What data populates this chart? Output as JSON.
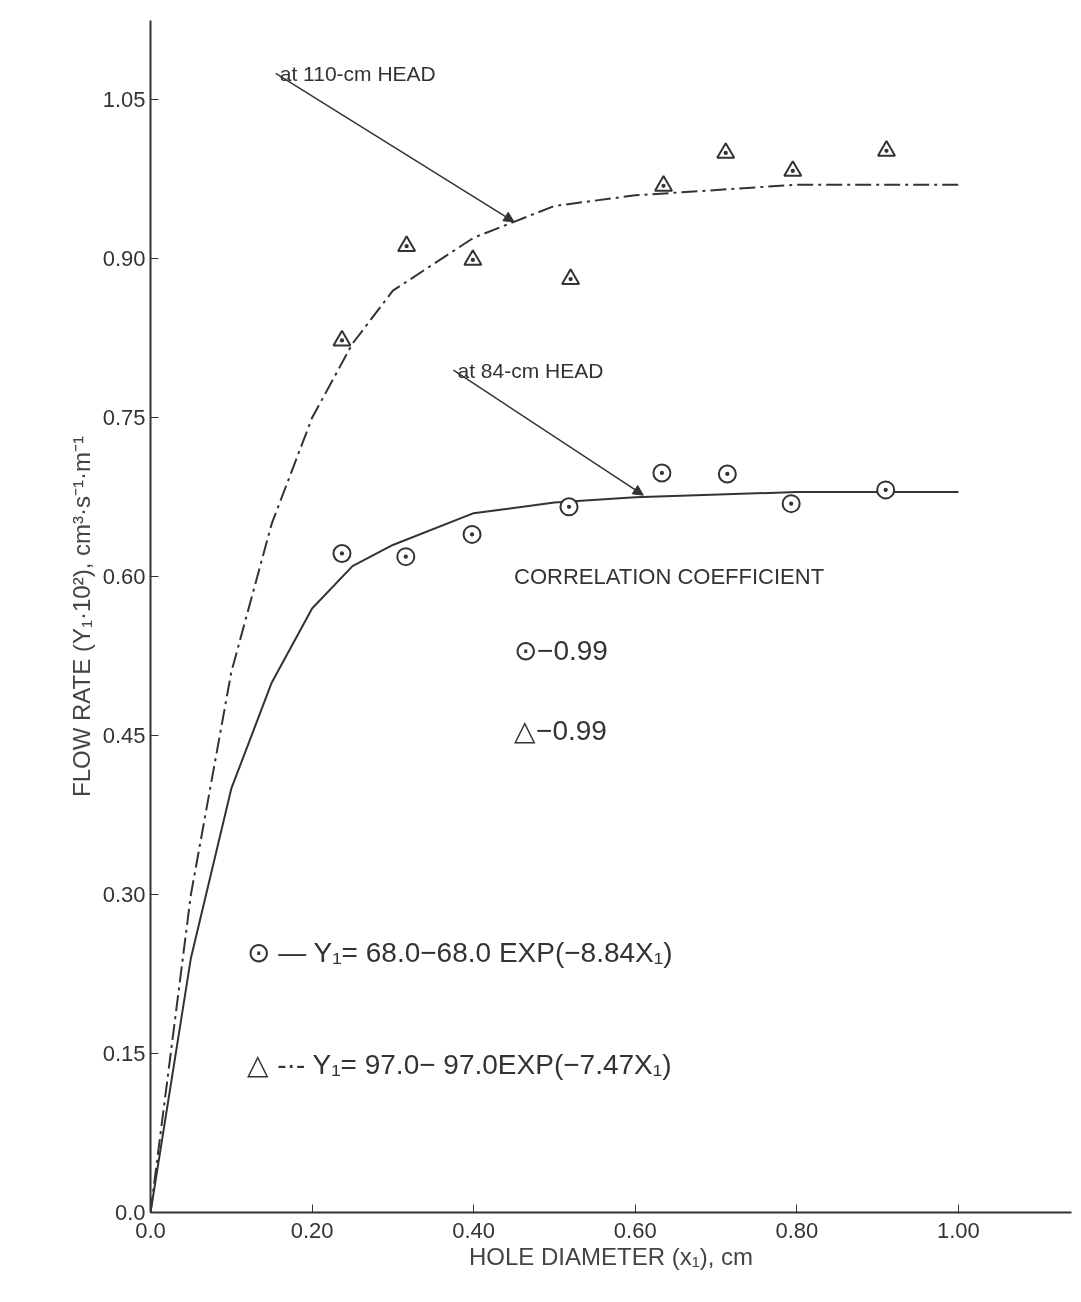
{
  "chart_data": {
    "type": "scatter",
    "xlabel": "HOLE DIAMETER (x₁), cm",
    "ylabel": "FLOW RATE (Y₁·10²), cm³·s⁻¹·m⁻¹",
    "xlim": [
      0,
      1.14
    ],
    "ylim": [
      0,
      1.125
    ],
    "xticks": [
      {
        "value": 0,
        "label": "0.0"
      },
      {
        "value": 0.2,
        "label": "0.20"
      },
      {
        "value": 0.4,
        "label": "0.40"
      },
      {
        "value": 0.6,
        "label": "0.60"
      },
      {
        "value": 0.8,
        "label": "0.80"
      },
      {
        "value": 1.0,
        "label": "1.00"
      }
    ],
    "yticks": [
      {
        "value": 0,
        "label": "0.0"
      },
      0.15,
      {
        "value": 0.3,
        "label": "0.30"
      },
      0.45,
      {
        "value": 0.6,
        "label": "0.60"
      },
      0.75,
      {
        "value": 0.9,
        "label": "0.90"
      },
      1.05
    ],
    "grid": false,
    "series": [
      {
        "marker": "circle",
        "color": "#333333",
        "x": [
          0.237,
          0.316,
          0.398,
          0.518,
          0.633,
          0.714,
          0.793,
          0.91
        ],
        "values": [
          0.622,
          0.619,
          0.64,
          0.666,
          0.698,
          0.697,
          0.669,
          0.682
        ]
      },
      {
        "marker": "triangle",
        "color": "#333333",
        "x": [
          0.237,
          0.317,
          0.399,
          0.52,
          0.635,
          0.712,
          0.795,
          0.911
        ],
        "values": [
          0.823,
          0.912,
          0.899,
          0.881,
          0.969,
          1.0,
          0.983,
          1.002
        ]
      },
      {
        "type": "line",
        "line_style": "solid",
        "color": "#333333",
        "x": [
          0,
          0.05,
          0.1,
          0.15,
          0.2,
          0.25,
          0.3,
          0.4,
          0.5,
          0.6,
          0.8,
          1.0
        ],
        "values": [
          0,
          0.24,
          0.4,
          0.5,
          0.57,
          0.61,
          0.63,
          0.66,
          0.67,
          0.675,
          0.68,
          0.68
        ]
      },
      {
        "type": "line",
        "line_style": "dashed",
        "color": "#333333",
        "x": [
          0,
          0.05,
          0.1,
          0.15,
          0.2,
          0.25,
          0.3,
          0.4,
          0.5,
          0.6,
          0.8,
          1.0
        ],
        "values": [
          0,
          0.3,
          0.51,
          0.65,
          0.75,
          0.82,
          0.87,
          0.92,
          0.95,
          0.96,
          0.97,
          0.97
        ]
      }
    ],
    "annotations": [
      {
        "text": "at 110-cm HEAD",
        "x": 0.45,
        "y": 0.935
      },
      {
        "text": "at 84-cm HEAD",
        "x": 0.61,
        "y": 0.677
      },
      "CORRELATION COEFFICIENT",
      "⊙−0.99",
      "△−0.99",
      "⊙ — Y₁= 68.0−68.0 EXP(−8.84X₁)",
      "△ -·- Y₁= 97.0− 97.0EXP(−7.47X₁)"
    ]
  }
}
